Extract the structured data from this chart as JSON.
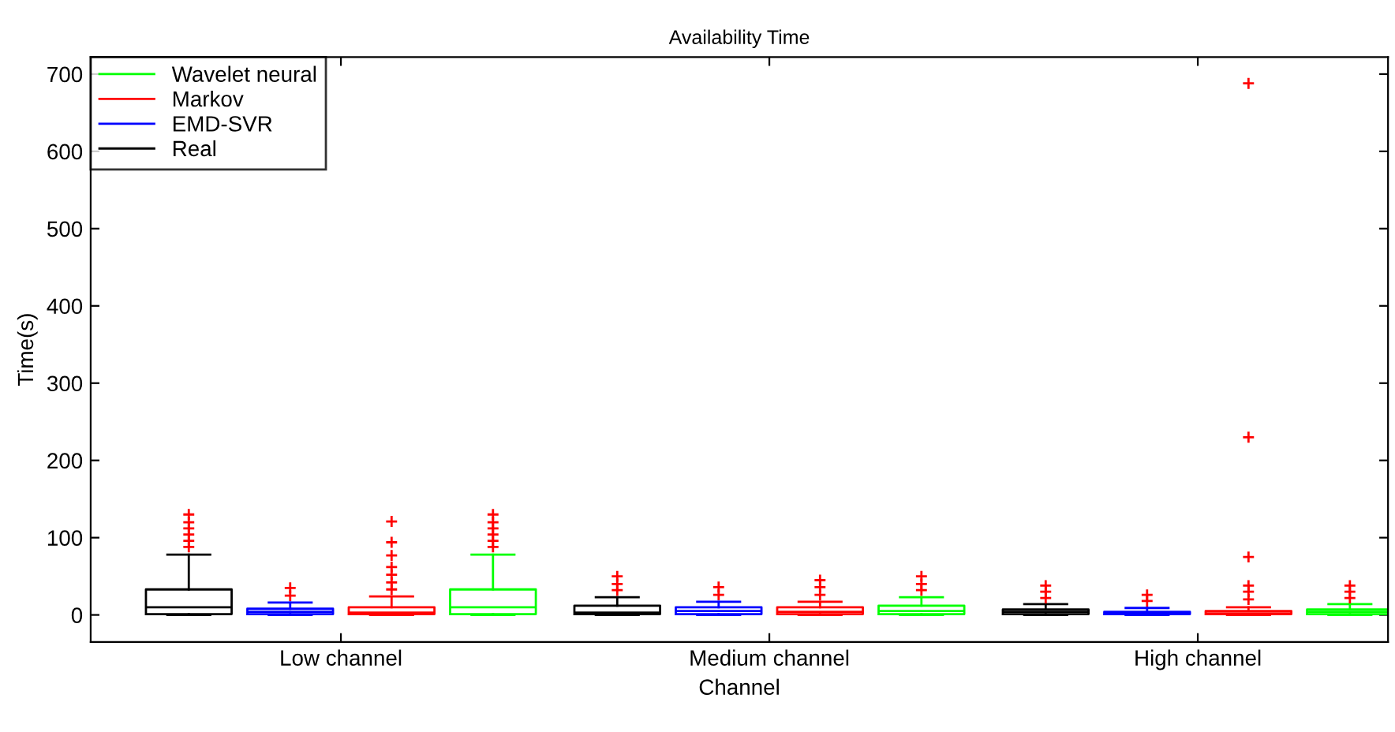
{
  "chart_data": {
    "type": "box",
    "title": "Availability Time",
    "xlabel": "Channel",
    "ylabel": "Time(s)",
    "categories": [
      "Low channel",
      "Medium channel",
      "High channel"
    ],
    "ylim": [
      -35,
      722
    ],
    "yticks": [
      0,
      100,
      200,
      300,
      400,
      500,
      600,
      700
    ],
    "legend": "top left",
    "grid": false,
    "series": [
      {
        "name": "Real",
        "color": "#000000",
        "boxes": [
          {
            "low": 0,
            "q1": 1,
            "median": 10,
            "q3": 33,
            "high": 78,
            "outliers": [
              88,
              96,
              104,
              112,
              120,
              130
            ]
          },
          {
            "low": 0,
            "q1": 1,
            "median": 3,
            "q3": 12,
            "high": 23,
            "outliers": [
              32,
              40,
              50
            ]
          },
          {
            "low": 0,
            "q1": 1,
            "median": 4,
            "q3": 7,
            "high": 14,
            "outliers": [
              22,
              30,
              38
            ]
          }
        ]
      },
      {
        "name": "EMD-SVR",
        "color": "#0000ff",
        "boxes": [
          {
            "low": 0,
            "q1": 1,
            "median": 4,
            "q3": 8,
            "high": 16,
            "outliers": [
              25,
              35
            ]
          },
          {
            "low": 0,
            "q1": 1,
            "median": 5,
            "q3": 10,
            "high": 17,
            "outliers": [
              26,
              36
            ]
          },
          {
            "low": 0,
            "q1": 1,
            "median": 2,
            "q3": 4,
            "high": 9,
            "outliers": [
              18,
              26
            ]
          }
        ]
      },
      {
        "name": "Markov",
        "color": "#ff0000",
        "boxes": [
          {
            "low": 0,
            "q1": 1,
            "median": 3,
            "q3": 10,
            "high": 24,
            "outliers": [
              33,
              42,
              52,
              62,
              77,
              94,
              121
            ]
          },
          {
            "low": 0,
            "q1": 1,
            "median": 4,
            "q3": 10,
            "high": 17,
            "outliers": [
              26,
              36,
              45
            ]
          },
          {
            "low": 0,
            "q1": 1,
            "median": 2,
            "q3": 5,
            "high": 10,
            "outliers": [
              20,
              30,
              38,
              75,
              230,
              688
            ]
          }
        ]
      },
      {
        "name": "Wavelet neural",
        "color": "#00ff00",
        "boxes": [
          {
            "low": 0,
            "q1": 1,
            "median": 10,
            "q3": 33,
            "high": 78,
            "outliers": [
              88,
              96,
              104,
              112,
              120,
              130
            ]
          },
          {
            "low": 0,
            "q1": 1,
            "median": 5,
            "q3": 12,
            "high": 23,
            "outliers": [
              32,
              40,
              50
            ]
          },
          {
            "low": 0,
            "q1": 1,
            "median": 4,
            "q3": 7,
            "high": 14,
            "outliers": [
              22,
              30,
              38
            ]
          }
        ]
      }
    ]
  }
}
